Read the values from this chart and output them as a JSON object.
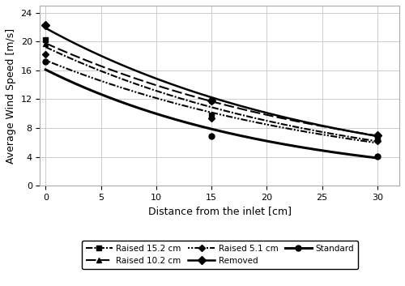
{
  "x": [
    0,
    15,
    30
  ],
  "series": {
    "Raised 15.2 cm": [
      20.3,
      9.8,
      6.5
    ],
    "Raised 10.2 cm": [
      19.7,
      11.8,
      6.9
    ],
    "Raised 5.1 cm": [
      18.2,
      9.3,
      6.2
    ],
    "Removed": [
      22.3,
      11.8,
      7.0
    ],
    "Standard": [
      17.2,
      6.9,
      4.1
    ]
  },
  "styles": {
    "Raised 15.2 cm": {
      "linestyle": "dashdot_dot",
      "marker": "s",
      "markersize": 5,
      "linewidth": 1.5
    },
    "Raised 10.2 cm": {
      "linestyle": "dashed",
      "marker": "^",
      "markersize": 5,
      "linewidth": 1.5
    },
    "Raised 5.1 cm": {
      "linestyle": "dot_dash",
      "marker": "D",
      "markersize": 4,
      "linewidth": 1.5
    },
    "Removed": {
      "linestyle": "solid",
      "marker": "D",
      "markersize": 5,
      "linewidth": 1.8
    },
    "Standard": {
      "linestyle": "solid",
      "marker": "o",
      "markersize": 5,
      "linewidth": 2.2
    }
  },
  "xlabel": "Distance from the inlet [cm]",
  "ylabel": "Average Wind Speed [m/s]",
  "xlim": [
    -0.5,
    32
  ],
  "ylim": [
    0,
    25
  ],
  "xticks": [
    0,
    5,
    10,
    15,
    20,
    25,
    30
  ],
  "yticks": [
    0,
    4,
    8,
    12,
    16,
    20,
    24
  ],
  "background_color": "#ffffff",
  "grid_color": "#cccccc",
  "legend_order": [
    "Raised 15.2 cm",
    "Raised 10.2 cm",
    "Raised 5.1 cm",
    "Removed",
    "Standard"
  ],
  "legend_ncol": 3
}
